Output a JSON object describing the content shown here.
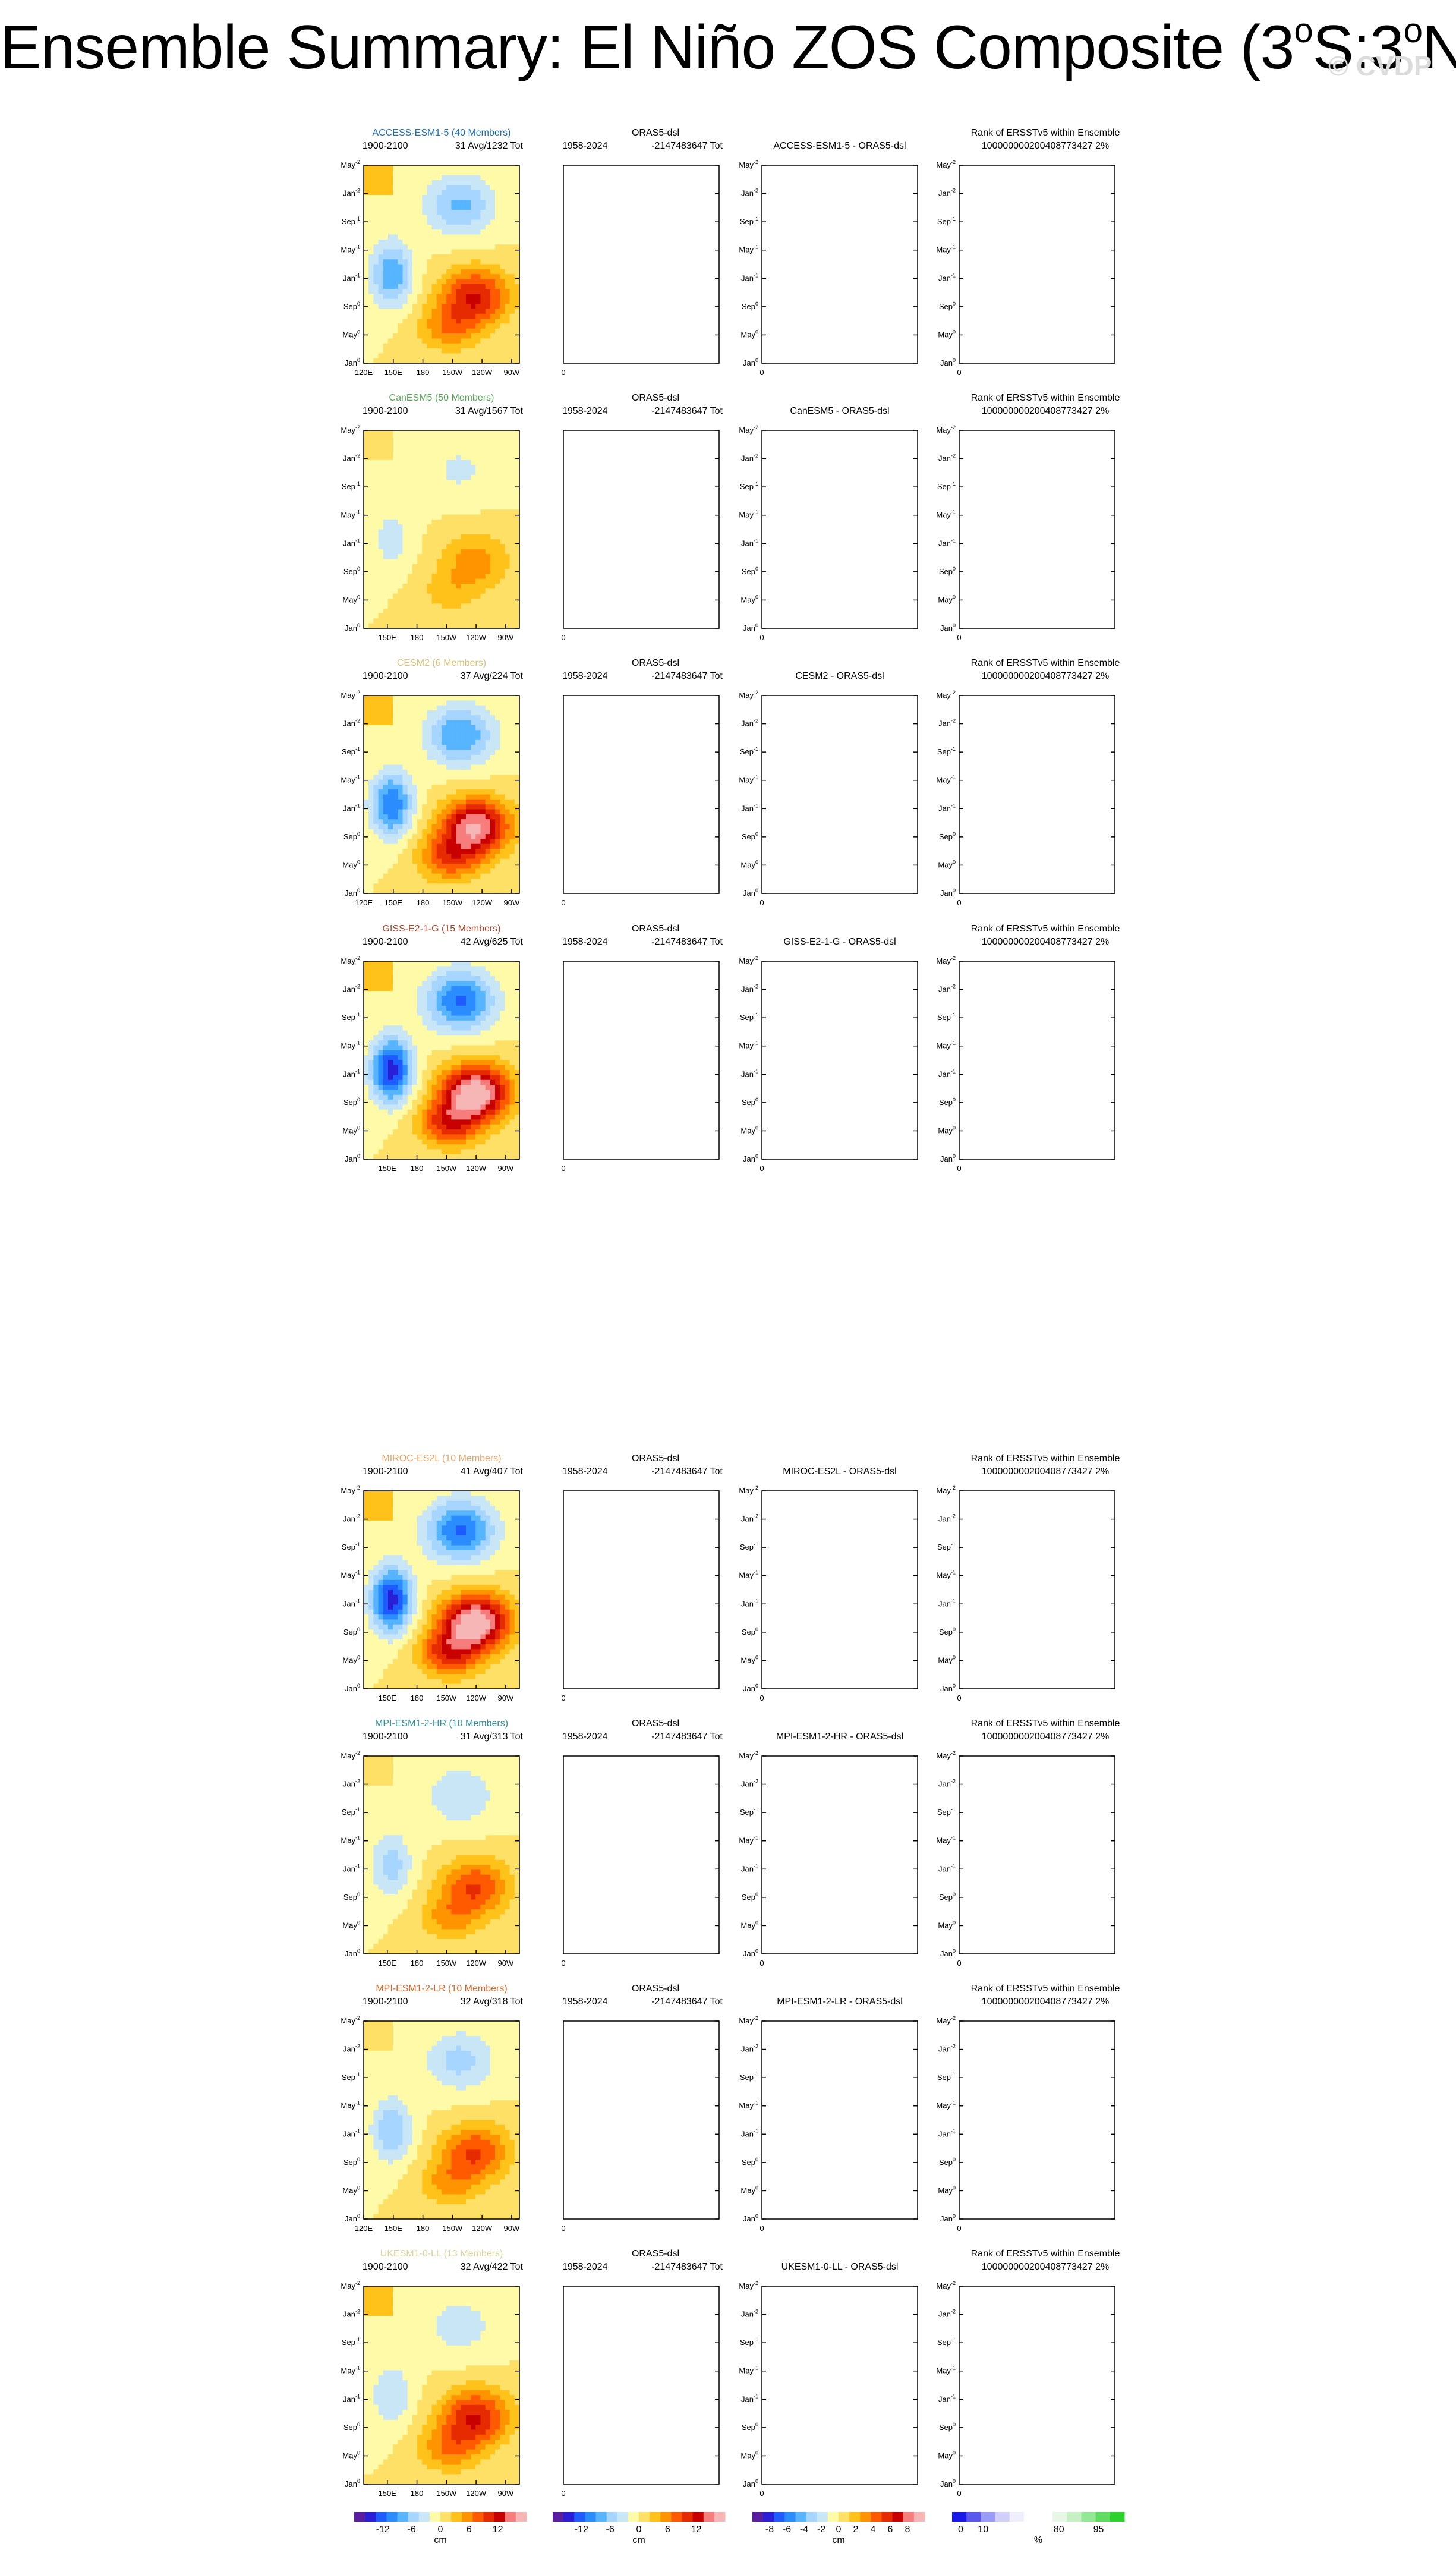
{
  "title": {
    "prefix": "Ensemble Summary: El Niño ZOS Composite (3",
    "deg1": "o",
    "mid": "S:3",
    "deg2": "o",
    "suffix": "N)"
  },
  "watermark": "© CVDP",
  "obs": {
    "title": "ORAS5-dsl",
    "years": "1958-2024",
    "total": "-2147483647 Tot"
  },
  "rank_panel": {
    "title": "Rank of ERSSTv5 within Ensemble",
    "value": "100000000200408773427 2%"
  },
  "y_ticks": [
    {
      "month": "May",
      "exp": "-2"
    },
    {
      "month": "Jan",
      "exp": "-2"
    },
    {
      "month": "Sep",
      "exp": "-1"
    },
    {
      "month": "May",
      "exp": "-1"
    },
    {
      "month": "Jan",
      "exp": "-1"
    },
    {
      "month": "Sep",
      "exp": "0"
    },
    {
      "month": "May",
      "exp": "0"
    },
    {
      "month": "Jan",
      "exp": "0"
    }
  ],
  "x_ticks_full": [
    "120E",
    "150E",
    "180",
    "150W",
    "120W",
    "90W"
  ],
  "x_ticks_short": [
    "150E",
    "180",
    "150W",
    "120W",
    "90W"
  ],
  "empty_x_tick": "0",
  "models": [
    {
      "name": "ACCESS-ESM1-5 (40 Members)",
      "color": "#1f6fb4",
      "years": "1900-2100",
      "stats": "31 Avg/1232 Tot",
      "diff_title": "ACCESS-ESM1-5 - ORAS5-dsl",
      "x_full": true
    },
    {
      "name": "CanESM5 (50 Members)",
      "color": "#58a35a",
      "years": "1900-2100",
      "stats": "31 Avg/1567 Tot",
      "diff_title": "CanESM5 - ORAS5-dsl",
      "x_full": false
    },
    {
      "name": "CESM2 (6 Members)",
      "color": "#d6c27a",
      "years": "1900-2100",
      "stats": "37 Avg/224 Tot",
      "diff_title": "CESM2 - ORAS5-dsl",
      "x_full": true
    },
    {
      "name": "GISS-E2-1-G (15 Members)",
      "color": "#a2452c",
      "years": "1900-2100",
      "stats": "42 Avg/625 Tot",
      "diff_title": "GISS-E2-1-G - ORAS5-dsl",
      "x_full": false
    },
    {
      "name": "MIROC-ES2L (10 Members)",
      "color": "#e8a46a",
      "years": "1900-2100",
      "stats": "41 Avg/407 Tot",
      "diff_title": "MIROC-ES2L - ORAS5-dsl",
      "x_full": false
    },
    {
      "name": "MPI-ESM1-2-HR (10 Members)",
      "color": "#2f8f9a",
      "years": "1900-2100",
      "stats": "31 Avg/313 Tot",
      "diff_title": "MPI-ESM1-2-HR - ORAS5-dsl",
      "x_full": false
    },
    {
      "name": "MPI-ESM1-2-LR (10 Members)",
      "color": "#d9672b",
      "years": "1900-2100",
      "stats": "32 Avg/318 Tot",
      "diff_title": "MPI-ESM1-2-LR - ORAS5-dsl",
      "x_full": true
    },
    {
      "name": "UKESM1-0-LL (13 Members)",
      "color": "#d8d49a",
      "years": "1900-2100",
      "stats": "32 Avg/422 Tot",
      "diff_title": "UKESM1-0-LL - ORAS5-dsl",
      "x_full": false
    }
  ],
  "colorbars": [
    {
      "labels": [
        "-12",
        "-6",
        "0",
        "6",
        "12"
      ],
      "unit": "cm"
    },
    {
      "labels": [
        "-12",
        "-6",
        "0",
        "6",
        "12"
      ],
      "unit": "cm"
    },
    {
      "labels": [
        "-8",
        "-6",
        "-4",
        "-2",
        "0",
        "2",
        "4",
        "6",
        "8"
      ],
      "unit": "cm"
    },
    {
      "labels": [
        "0",
        "10",
        "80",
        "95"
      ],
      "unit": "%"
    }
  ],
  "colors": {
    "div_palette": [
      "#5a1ea0",
      "#2a1fd6",
      "#1e5cff",
      "#2b8cff",
      "#57b4ff",
      "#a6d6ff",
      "#c9e6f7",
      "#fffaa8",
      "#ffe066",
      "#ffc21a",
      "#ff9400",
      "#ff5a00",
      "#e62b00",
      "#c80000",
      "#f77c7c",
      "#f7b6b6"
    ],
    "rank_palette": [
      "#1a1ae6",
      "#5858f0",
      "#9a9af7",
      "#cfcff9",
      "#eeeefc",
      "#ffffff",
      "#ffffff",
      "#e6f7e6",
      "#c4f0c4",
      "#94e894",
      "#5fdc5f",
      "#2bd22b"
    ]
  },
  "chart_data": [
    {
      "type": "heatmap",
      "title": "ACCESS-ESM1-5 (40 Members)",
      "xlabel": "",
      "ylabel": "",
      "unit": "cm",
      "pattern": "moderate",
      "x": [
        "120E",
        "150E",
        "180",
        "150W",
        "120W",
        "90W"
      ],
      "y": [
        "Jan0",
        "May0",
        "Sep0",
        "Jan-1",
        "May-1",
        "Sep-1",
        "Jan-2",
        "May-2"
      ],
      "note_peak_warm": 10,
      "peak_cold": -8
    },
    {
      "type": "heatmap",
      "title": "CanESM5 (50 Members)",
      "unit": "cm",
      "pattern": "weak",
      "note_peak_warm": 5,
      "peak_cold": -3
    },
    {
      "type": "heatmap",
      "title": "CESM2 (6 Members)",
      "unit": "cm",
      "pattern": "strong",
      "note_peak_warm": 14,
      "peak_cold": -10
    },
    {
      "type": "heatmap",
      "title": "GISS-E2-1-G (15 Members)",
      "unit": "cm",
      "pattern": "strong",
      "note_peak_warm": 16,
      "peak_cold": -13
    },
    {
      "type": "heatmap",
      "title": "MIROC-ES2L (10 Members)",
      "unit": "cm",
      "pattern": "strong",
      "note_peak_warm": 16,
      "peak_cold": -13
    },
    {
      "type": "heatmap",
      "title": "MPI-ESM1-2-HR (10 Members)",
      "unit": "cm",
      "pattern": "weak",
      "note_peak_warm": 8,
      "peak_cold": -5
    },
    {
      "type": "heatmap",
      "title": "MPI-ESM1-2-LR (10 Members)",
      "unit": "cm",
      "pattern": "weak",
      "note_peak_warm": 8,
      "peak_cold": -6
    },
    {
      "type": "heatmap",
      "title": "UKESM1-0-LL (13 Members)",
      "unit": "cm",
      "pattern": "moderate",
      "note_peak_warm": 10,
      "peak_cold": -4
    }
  ]
}
